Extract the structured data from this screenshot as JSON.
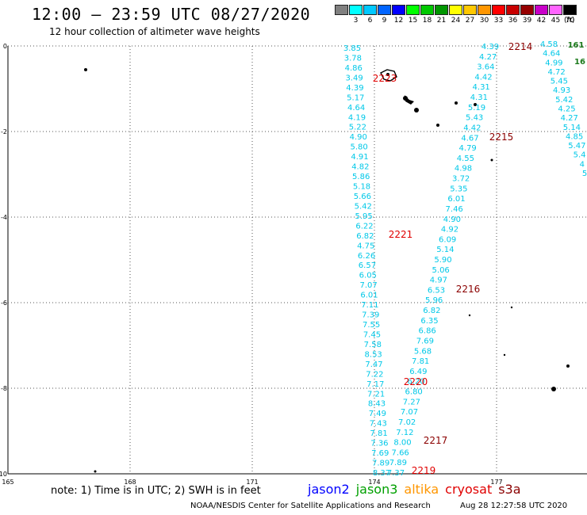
{
  "title": "12:00 – 23:59 UTC 08/27/2020",
  "subtitle": "12 hour collection of altimeter wave heights",
  "color_scale": {
    "unit": "(ft)",
    "bins": [
      {
        "label": "",
        "color": "#808080"
      },
      {
        "label": "3",
        "color": "#00ffff"
      },
      {
        "label": "6",
        "color": "#00c8ff"
      },
      {
        "label": "9",
        "color": "#0064ff"
      },
      {
        "label": "12",
        "color": "#0000ff"
      },
      {
        "label": "15",
        "color": "#00ff00"
      },
      {
        "label": "18",
        "color": "#00c800"
      },
      {
        "label": "21",
        "color": "#009600"
      },
      {
        "label": "24",
        "color": "#ffff00"
      },
      {
        "label": "27",
        "color": "#ffc800"
      },
      {
        "label": "30",
        "color": "#ff9600"
      },
      {
        "label": "33",
        "color": "#ff0000"
      },
      {
        "label": "36",
        "color": "#c80000"
      },
      {
        "label": "39",
        "color": "#960000"
      },
      {
        "label": "42",
        "color": "#c800c8"
      },
      {
        "label": "45",
        "color": "#ff64ff"
      },
      {
        "label": "70",
        "color": "#000000"
      }
    ]
  },
  "axes": {
    "lon_ticks": [
      "165",
      "168",
      "171",
      "174",
      "177"
    ],
    "lat_ticks": [
      "0",
      "-2",
      "-4",
      "-6",
      "-8",
      "-10"
    ]
  },
  "tracks": [
    {
      "id": "track-A",
      "color": "#00c8e8",
      "values": [
        "3.85",
        "3.78",
        "4.86",
        "3.49",
        "4.39",
        "5.17",
        "4.64",
        "4.19",
        "5.22",
        "4.90",
        "5.80",
        "4.91",
        "4.82",
        "5.86",
        "5.18",
        "5.66",
        "5.42",
        "5.95",
        "6.22",
        "6.82",
        "4.75",
        "6.26",
        "6.57",
        "6.05",
        "7.07",
        "6.01",
        "7.11",
        "7.39",
        "7.55",
        "7.45",
        "7.58",
        "8.53",
        "7.47",
        "7.22",
        "7.17",
        "7.21",
        "8.43",
        "7.49",
        "7.43",
        "7.81",
        "7.36",
        "7.69",
        "7.89",
        "8.37"
      ]
    },
    {
      "id": "track-B",
      "color": "#00c8e8",
      "values": [
        "4.39",
        "4.27",
        "3.64",
        "4.42",
        "4.31",
        "4.31",
        "5.19",
        "5.43",
        "4.42",
        "4.67",
        "4.79",
        "4.55",
        "4.98",
        "3.72",
        "5.35",
        "6.01",
        "7.46",
        "4.90",
        "4.92",
        "6.09",
        "5.14",
        "5.90",
        "5.06",
        "4.97",
        "6.53",
        "5.96",
        "6.82",
        "6.35",
        "6.86",
        "7.69",
        "5.68",
        "7.81",
        "6.49",
        "6.20",
        "6.80",
        "7.27",
        "7.07",
        "7.02",
        "7.12",
        "8.00",
        "7.66",
        "7.89",
        "7.37"
      ]
    },
    {
      "id": "track-C",
      "color": "#00c8e8",
      "values": [
        "4.58",
        "4.64",
        "4.99",
        "4.72",
        "5.45",
        "4.93",
        "5.42",
        "4.25",
        "4.27",
        "5.14",
        "4.85",
        "5.47",
        "5.4",
        "4",
        "5"
      ]
    },
    {
      "id": "track-C-edge",
      "color": "#1c7a1c",
      "values": [
        "161",
        "16"
      ]
    }
  ],
  "pass_labels": [
    {
      "text": "2214",
      "color": "#8b0000"
    },
    {
      "text": "2223",
      "color": "#e00000"
    },
    {
      "text": "2215",
      "color": "#8b0000"
    },
    {
      "text": "2221",
      "color": "#e00000"
    },
    {
      "text": "2216",
      "color": "#8b0000"
    },
    {
      "text": "2220",
      "color": "#e00000"
    },
    {
      "text": "2217",
      "color": "#8b0000"
    },
    {
      "text": "2219",
      "color": "#e00000"
    }
  ],
  "note": "note: 1) Time is in UTC; 2) SWH is in feet",
  "legend": [
    {
      "name": "jason2",
      "color": "#0000ff"
    },
    {
      "name": "jason3",
      "color": "#00a000"
    },
    {
      "name": "altika",
      "color": "#ff9600"
    },
    {
      "name": "cryosat",
      "color": "#e00000"
    },
    {
      "name": "s3a",
      "color": "#8b0000"
    }
  ],
  "footer": "NOAA/NESDIS Center for Satellite Applications and Research",
  "timestamp": "Aug 28 12:27:58 UTC 2020"
}
